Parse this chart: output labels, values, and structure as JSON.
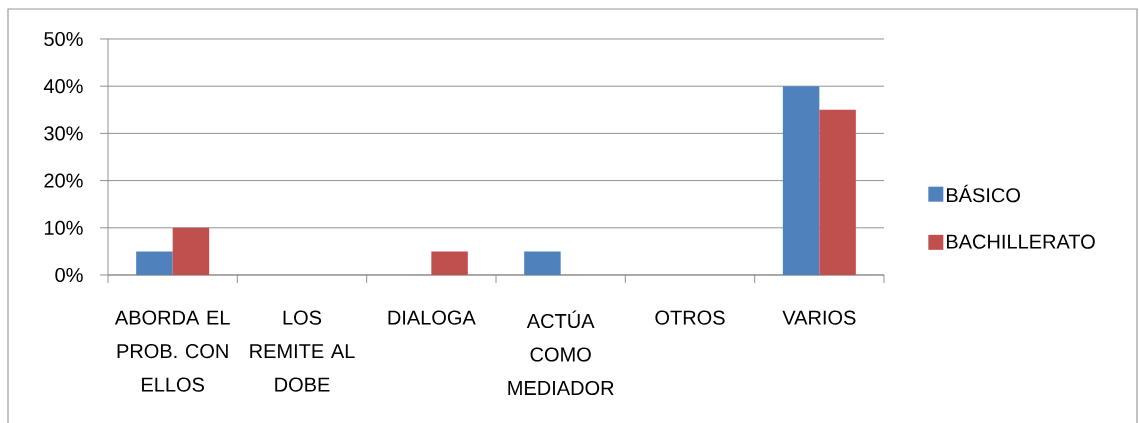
{
  "chart_data": {
    "type": "bar",
    "categories": [
      "ABORDA EL PROB. CON ELLOS",
      "LOS REMITE AL DOBE",
      "DIALOGA",
      "ACTÚA COMO MEDIADOR",
      "OTROS",
      "VARIOS"
    ],
    "series": [
      {
        "name": "BÁSICO",
        "color": "#4f81bd",
        "values": [
          5,
          0,
          0,
          5,
          0,
          40
        ]
      },
      {
        "name": "BACHILLERATO",
        "color": "#c0504d",
        "values": [
          10,
          0,
          5,
          0,
          0,
          35
        ]
      }
    ],
    "ylim": [
      0,
      50
    ],
    "yticks": [
      {
        "value": 0,
        "label": "0%"
      },
      {
        "value": 10,
        "label": "10%"
      },
      {
        "value": 20,
        "label": "20%"
      },
      {
        "value": 30,
        "label": "30%"
      },
      {
        "value": 40,
        "label": "40%"
      },
      {
        "value": 50,
        "label": "50%"
      }
    ],
    "grid": "y",
    "legend": "right"
  }
}
